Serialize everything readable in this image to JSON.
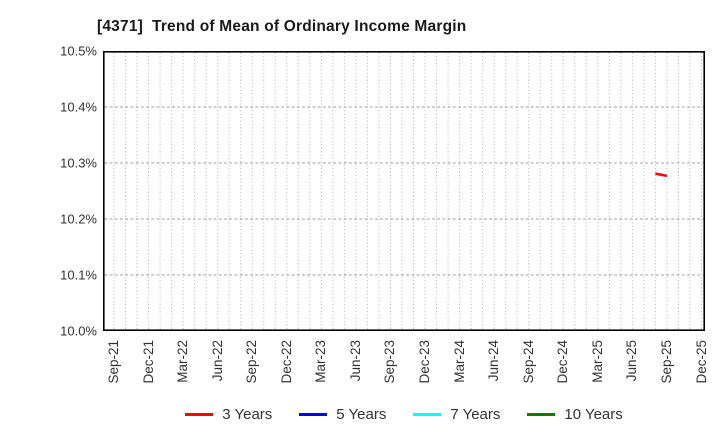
{
  "title": {
    "text": "[4371]  Trend of Mean of Ordinary Income Margin"
  },
  "colors": {
    "background": "#ffffff",
    "frame": "#000000",
    "grid_vertical": "#b3b3b3",
    "grid_horizontal": "#9e9e9e",
    "tick_text": "#333333",
    "title_text": "#1a1a1a",
    "legend_text": "#333333"
  },
  "chart_data": {
    "type": "line",
    "title": "[4371]  Trend of Mean of Ordinary Income Margin",
    "xlabel": "",
    "ylabel": "",
    "ylim": [
      10.0,
      10.5
    ],
    "ytick_labels": [
      "10.0%",
      "10.1%",
      "10.2%",
      "10.3%",
      "10.4%",
      "10.5%"
    ],
    "x_start_month": "Sep-21",
    "x_end_month": "Dec-25",
    "x_total_months": 52,
    "xtick_labels": [
      "Sep-21",
      "Dec-21",
      "Mar-22",
      "Jun-22",
      "Sep-22",
      "Dec-22",
      "Mar-23",
      "Jun-23",
      "Sep-23",
      "Dec-23",
      "Mar-24",
      "Jun-24",
      "Sep-24",
      "Dec-24",
      "Mar-25",
      "Jun-25",
      "Sep-25",
      "Dec-25"
    ],
    "xtick_month_indices": [
      0,
      3,
      6,
      9,
      12,
      15,
      18,
      21,
      24,
      27,
      30,
      33,
      36,
      39,
      42,
      45,
      48,
      51
    ],
    "grid": {
      "vertical": "dotted, monthly",
      "horizontal": "dashed, every 0.1%"
    },
    "legend_position": "bottom-center",
    "series": [
      {
        "name": "3 Years",
        "color": "#ff0000",
        "points": [
          {
            "month": "Aug-25",
            "month_index": 47,
            "value": 10.281
          },
          {
            "month": "Sep-25",
            "month_index": 48,
            "value": 10.277
          }
        ]
      },
      {
        "name": "5 Years",
        "color": "#0000ff",
        "points": []
      },
      {
        "name": "7 Years",
        "color": "#00ffff",
        "points": []
      },
      {
        "name": "10 Years",
        "color": "#008000",
        "points": []
      }
    ]
  }
}
